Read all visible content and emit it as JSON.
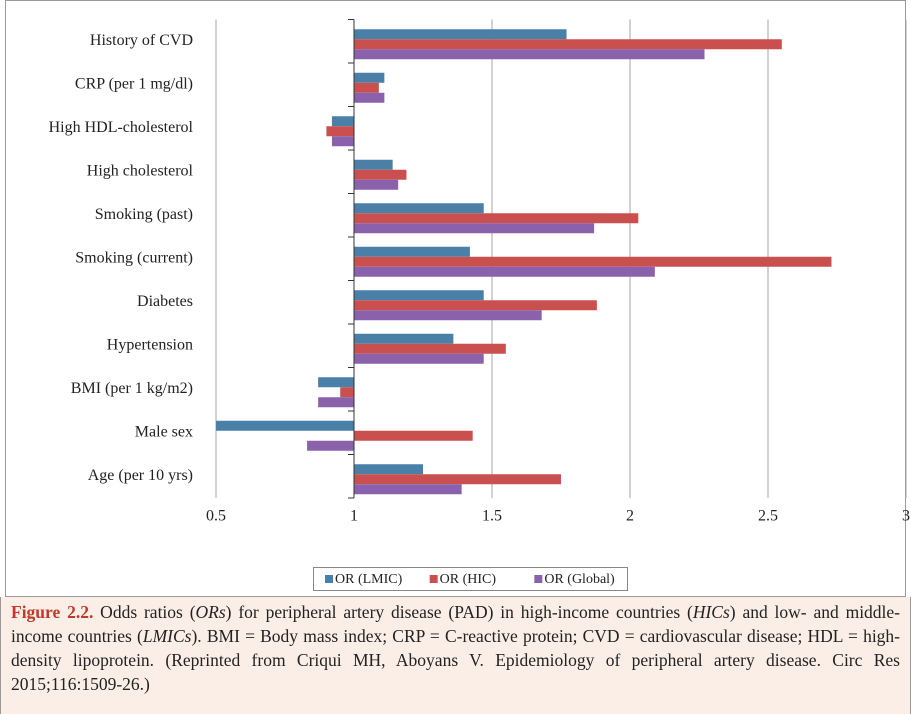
{
  "chart_data": {
    "type": "hbar",
    "categories": [
      "History of CVD",
      "CRP (per 1 mg/dl)",
      "High HDL-cholesterol",
      "High cholesterol",
      "Smoking (past)",
      "Smoking (current)",
      "Diabetes",
      "Hypertension",
      "BMI (per 1 kg/m2)",
      "Male sex",
      "Age (per 10 yrs)"
    ],
    "series": [
      {
        "name": "OR (LMIC)",
        "color": "#4a7fa8",
        "values": [
          1.77,
          1.11,
          0.92,
          1.14,
          1.47,
          1.42,
          1.47,
          1.36,
          0.87,
          0.5,
          1.25
        ]
      },
      {
        "name": "OR (HIC)",
        "color": "#c9504e",
        "values": [
          2.55,
          1.09,
          0.9,
          1.19,
          2.03,
          2.73,
          1.88,
          1.55,
          0.95,
          1.43,
          1.75
        ]
      },
      {
        "name": "OR (Global)",
        "color": "#8a62ac",
        "values": [
          2.27,
          1.11,
          0.92,
          1.16,
          1.87,
          2.09,
          1.68,
          1.47,
          0.87,
          0.83,
          1.39
        ]
      }
    ],
    "base": 1,
    "xlim": [
      0.5,
      3
    ],
    "xticks": [
      0.5,
      1,
      1.5,
      2,
      2.5,
      3
    ],
    "grid": true,
    "legend": "bottom"
  },
  "caption": {
    "parts": [
      "Figure 2.2.",
      " Odds ratios (",
      "ORs",
      ") for peripheral artery disease (PAD) in high-income countries (",
      "HICs",
      ") and low- and middle-income countries (",
      "LMICs",
      "). BMI = Body mass index; CRP = C-reactive protein; CVD = cardiovascular disease; HDL = high-density lipoprotein.  (Reprinted from Criqui MH, Aboyans V. Epidemiology of peripheral artery disease. Circ Res 2015;116:1509-26.)"
    ]
  }
}
